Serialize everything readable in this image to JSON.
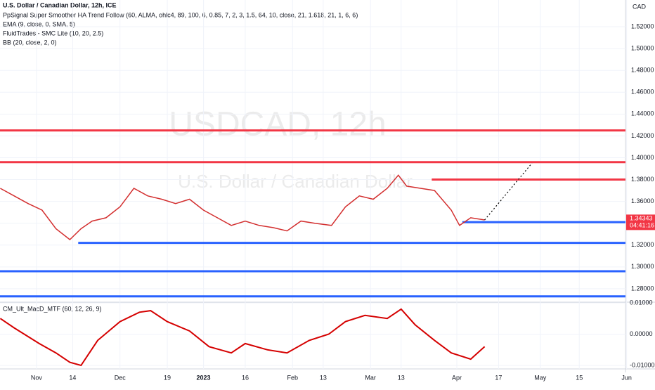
{
  "chart_data": {
    "type": "line",
    "title": "U.S. Dollar / Canadian Dollar, 12h, ICE",
    "indicators": [
      "PpSignal Super Smoother HA Trend Follow (60, ALMA, ohlc4, 89, 100, 6, 0.85, 7, 2, 3, 1.5, 64, 10, close, 21, 1.618, 21, 1, 6, 6)",
      "EMA (9, close, 0, SMA, 5)",
      "FluidTrades - SMC Lite  (10, 20, 2.5)",
      "BB (20, close, 2, 0)"
    ],
    "watermark": "USDCAD, 12h",
    "watermark_sub": "U.S. Dollar / Canadian Dollar",
    "y_axis_unit": "CAD",
    "last_price": {
      "value": 1.34343,
      "label": "1.34343"
    },
    "countdown": "04:41:16",
    "xlim": [
      -13.1,
      211.6
    ],
    "xticks": [
      {
        "value": 0,
        "label": "Nov"
      },
      {
        "value": 13,
        "label": "14"
      },
      {
        "value": 30,
        "label": "Dec"
      },
      {
        "value": 47,
        "label": "19"
      },
      {
        "value": 60,
        "label": "2023"
      },
      {
        "value": 75,
        "label": "16"
      },
      {
        "value": 92,
        "label": "Feb"
      },
      {
        "value": 103,
        "label": "13"
      },
      {
        "value": 120,
        "label": "Mar"
      },
      {
        "value": 131,
        "label": "13"
      },
      {
        "value": 151,
        "label": "Apr"
      },
      {
        "value": 166,
        "label": "17"
      },
      {
        "value": 181,
        "label": "May"
      },
      {
        "value": 195,
        "label": "15"
      },
      {
        "value": 212,
        "label": "Jun"
      }
    ],
    "ylim": [
      1.2677,
      1.5445
    ],
    "yticks": [
      {
        "value": 1.28,
        "label": "1.28000"
      },
      {
        "value": 1.3,
        "label": "1.30000"
      },
      {
        "value": 1.32,
        "label": "1.32000"
      },
      {
        "value": 1.34,
        "label": "1.34000"
      },
      {
        "value": 1.36,
        "label": "1.36000"
      },
      {
        "value": 1.38,
        "label": "1.38000"
      },
      {
        "value": 1.4,
        "label": "1.40000"
      },
      {
        "value": 1.42,
        "label": "1.42000"
      },
      {
        "value": 1.44,
        "label": "1.44000"
      },
      {
        "value": 1.46,
        "label": "1.46000"
      },
      {
        "value": 1.48,
        "label": "1.48000"
      },
      {
        "value": 1.5,
        "label": "1.50000"
      },
      {
        "value": 1.52,
        "label": "1.52000"
      }
    ],
    "series": [
      {
        "name": "USDCAD",
        "color": "#d32f2f",
        "x": [
          -13,
          -8,
          -3,
          2,
          7,
          12,
          16,
          20,
          25,
          30,
          35,
          40,
          45,
          50,
          55,
          60,
          65,
          70,
          75,
          80,
          85,
          90,
          95,
          100,
          106,
          111,
          116,
          121,
          126,
          130,
          133,
          138,
          143,
          149,
          152,
          156,
          161
        ],
        "values": [
          1.372,
          1.365,
          1.358,
          1.352,
          1.335,
          1.325,
          1.335,
          1.342,
          1.345,
          1.355,
          1.372,
          1.365,
          1.362,
          1.358,
          1.362,
          1.352,
          1.345,
          1.338,
          1.342,
          1.338,
          1.336,
          1.333,
          1.342,
          1.34,
          1.338,
          1.355,
          1.365,
          1.362,
          1.372,
          1.384,
          1.374,
          1.372,
          1.37,
          1.352,
          1.338,
          1.345,
          1.343
        ]
      }
    ],
    "levels": [
      {
        "value": 1.425,
        "color": "#f23645",
        "from": -13.1
      },
      {
        "value": 1.396,
        "color": "#f23645",
        "from": -13.1
      },
      {
        "value": 1.38,
        "color": "#f23645",
        "from": 142
      },
      {
        "value": 1.341,
        "color": "#2962ff",
        "from": 153
      },
      {
        "value": 1.322,
        "color": "#2962ff",
        "from": 15
      },
      {
        "value": 1.296,
        "color": "#2962ff",
        "from": -13.1
      },
      {
        "value": 1.273,
        "color": "#2962ff",
        "from": -13.1
      }
    ],
    "projection": {
      "x": [
        161,
        178
      ],
      "values": [
        1.343,
        1.395
      ]
    },
    "macd": {
      "title": "CM_Ult_MacD_MTF (60, 12, 26, 9)",
      "color": "#d50000",
      "ylim": [
        -0.01112,
        0.01022
      ],
      "yticks": [
        {
          "value": 0.01,
          "label": "0.01000"
        },
        {
          "value": 0,
          "label": "0.00000"
        },
        {
          "value": -0.01,
          "label": "-0.01000"
        }
      ],
      "x": [
        -13,
        -8,
        1,
        7,
        12,
        16,
        22,
        30,
        37,
        41,
        47,
        55,
        62,
        70,
        75,
        83,
        90,
        98,
        105,
        111,
        118,
        126,
        131,
        136,
        143,
        149,
        156,
        161
      ],
      "values": [
        0.005,
        0.002,
        -0.003,
        -0.006,
        -0.009,
        -0.01,
        -0.002,
        0.004,
        0.007,
        0.0075,
        0.004,
        0.001,
        -0.004,
        -0.006,
        -0.003,
        -0.005,
        -0.006,
        -0.002,
        0.0,
        0.004,
        0.006,
        0.005,
        0.008,
        0.003,
        -0.002,
        -0.006,
        -0.008,
        -0.004
      ]
    }
  }
}
